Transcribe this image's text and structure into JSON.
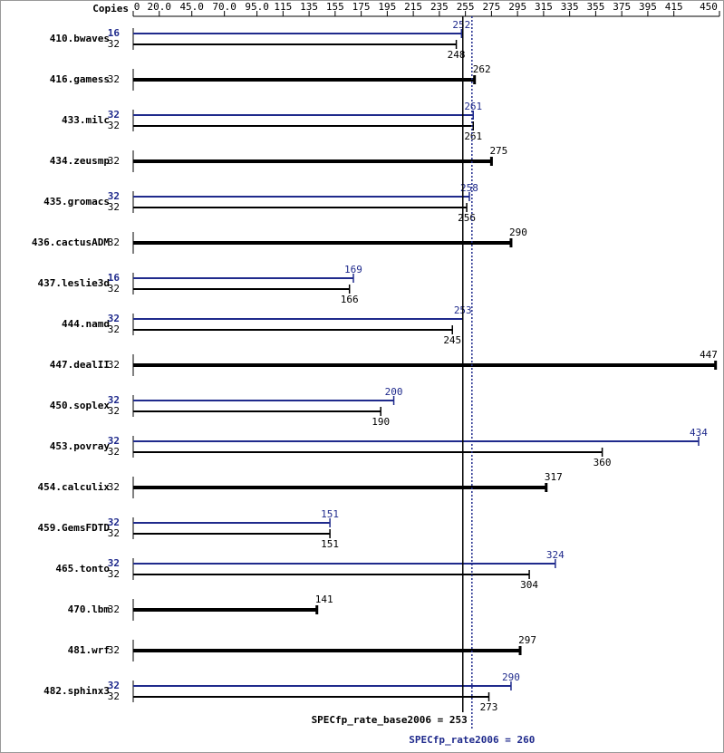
{
  "chart_data": {
    "type": "bar",
    "orientation": "horizontal",
    "x_axis_label": "Copies",
    "xlim": [
      0,
      450
    ],
    "xticks": [
      0,
      {
        "value": 20,
        "label": "20.0"
      },
      {
        "value": 45,
        "label": "45.0"
      },
      {
        "value": 70,
        "label": "70.0"
      },
      {
        "value": 95,
        "label": "95.0"
      },
      115,
      135,
      155,
      175,
      195,
      215,
      235,
      255,
      275,
      295,
      315,
      335,
      355,
      375,
      395,
      415,
      450
    ],
    "categories": [
      "410.bwaves",
      "416.gamess",
      "433.milc",
      "434.zeusmp",
      "435.gromacs",
      "436.cactusADM",
      "437.leslie3d",
      "444.namd",
      "447.dealII",
      "450.soplex",
      "453.povray",
      "454.calculix",
      "459.GemsFDTD",
      "465.tonto",
      "470.lbm",
      "481.wrf",
      "482.sphinx3"
    ],
    "series": [
      {
        "color": "#1f2a8c",
        "copies": [
          16,
          null,
          32,
          null,
          32,
          null,
          16,
          32,
          null,
          32,
          32,
          null,
          32,
          32,
          null,
          null,
          32
        ],
        "values": [
          252,
          null,
          261,
          null,
          258,
          null,
          169,
          253,
          null,
          200,
          434,
          null,
          151,
          324,
          null,
          null,
          290
        ]
      },
      {
        "color": "#000000",
        "copies": [
          32,
          32,
          32,
          32,
          32,
          32,
          32,
          32,
          32,
          32,
          32,
          32,
          32,
          32,
          32,
          32,
          32
        ],
        "values": [
          248,
          262,
          261,
          275,
          256,
          290,
          166,
          245,
          447,
          190,
          360,
          317,
          151,
          304,
          141,
          297,
          273
        ]
      }
    ],
    "reference_lines": [
      {
        "label": "SPECfp_rate_base2006 = 253",
        "value": 253,
        "color": "#000000",
        "style": "solid"
      },
      {
        "label": "SPECfp_rate2006 = 260",
        "value": 260,
        "color": "#1f2a8c",
        "style": "dotted"
      }
    ]
  }
}
